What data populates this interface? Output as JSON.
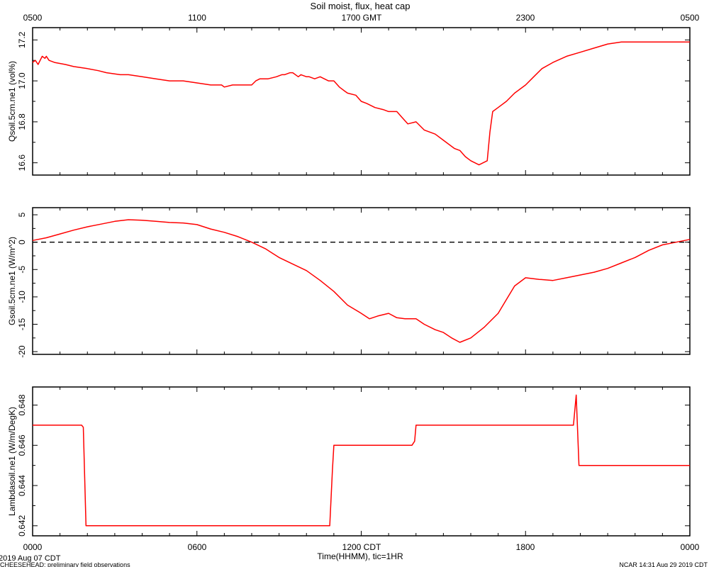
{
  "title": "Soil moist, flux, heat cap",
  "top_axis": {
    "labels": [
      "0500",
      "1100",
      "1700 GMT",
      "2300",
      "0500"
    ]
  },
  "bottom_axis": {
    "labels": [
      "0000",
      "0600",
      "1200 CDT",
      "1800",
      "0000"
    ],
    "xlabel": "Time(HHMM), tic=1HR"
  },
  "footer": {
    "date": "2019 Aug 07 CDT",
    "project": "CHEESEHEAD: preliminary field observations",
    "stamp": "NCAR 14:31 Aug 29 2019 CDT"
  },
  "colors": {
    "series": "#ff0000",
    "axes": "#000000",
    "zero_line": "#000000"
  },
  "chart_data": [
    {
      "type": "line",
      "ylabel": "Qsoil.5cm.ne1 (vol%)",
      "ylim": [
        16.54,
        17.26
      ],
      "yticks": [
        "16.6",
        "16.8",
        "17.0",
        "17.2"
      ],
      "xlim": [
        0,
        24
      ],
      "x": [
        0,
        0.1,
        0.2,
        0.35,
        0.45,
        0.5,
        0.6,
        0.8,
        1.2,
        1.5,
        2.0,
        2.4,
        2.7,
        3.2,
        3.5,
        4.0,
        4.5,
        5.0,
        5.5,
        6.0,
        6.5,
        6.9,
        7.0,
        7.3,
        8.0,
        8.15,
        8.3,
        8.6,
        8.9,
        9.1,
        9.2,
        9.4,
        9.5,
        9.7,
        9.8,
        10.0,
        10.1,
        10.3,
        10.5,
        10.8,
        11.0,
        11.2,
        11.4,
        11.5,
        11.8,
        12.0,
        12.2,
        12.5,
        12.8,
        13.0,
        13.3,
        13.5,
        13.7,
        14.0,
        14.3,
        14.7,
        15.0,
        15.4,
        15.6,
        15.8,
        16.0,
        16.3,
        16.6,
        16.7,
        16.8,
        17.0,
        17.3,
        17.6,
        18.0,
        18.3,
        18.6,
        19.0,
        19.5,
        20.0,
        20.5,
        21.0,
        21.5,
        22.0,
        22.5,
        23.0,
        23.5,
        24.0
      ],
      "values": [
        17.09,
        17.1,
        17.08,
        17.12,
        17.11,
        17.12,
        17.1,
        17.09,
        17.08,
        17.07,
        17.06,
        17.05,
        17.04,
        17.03,
        17.03,
        17.02,
        17.01,
        17.0,
        17.0,
        16.99,
        16.98,
        16.98,
        16.97,
        16.98,
        16.98,
        17.0,
        17.01,
        17.01,
        17.02,
        17.03,
        17.03,
        17.04,
        17.04,
        17.02,
        17.03,
        17.02,
        17.02,
        17.01,
        17.02,
        17.0,
        17.0,
        16.97,
        16.95,
        16.94,
        16.93,
        16.9,
        16.89,
        16.87,
        16.86,
        16.85,
        16.85,
        16.82,
        16.79,
        16.8,
        16.76,
        16.74,
        16.71,
        16.67,
        16.66,
        16.63,
        16.61,
        16.59,
        16.61,
        16.75,
        16.85,
        16.87,
        16.9,
        16.94,
        16.98,
        17.02,
        17.06,
        17.09,
        17.12,
        17.14,
        17.16,
        17.18,
        17.19,
        17.19,
        17.19,
        17.19,
        17.19,
        17.19
      ],
      "grid": false
    },
    {
      "type": "line",
      "ylabel": "Gsoil.5cm.ne1 (W/m^2)",
      "ylim": [
        -20.5,
        6.3
      ],
      "yticks": [
        "5",
        "0",
        "-5",
        "-10",
        "-15",
        "-20"
      ],
      "xlim": [
        0,
        24
      ],
      "x": [
        0,
        0.5,
        1.0,
        1.5,
        2.0,
        2.5,
        3.0,
        3.5,
        4.0,
        4.5,
        5.0,
        5.5,
        6.0,
        6.5,
        7.0,
        7.5,
        8.0,
        8.5,
        9.0,
        9.5,
        10.0,
        10.5,
        11.0,
        11.5,
        12.0,
        12.3,
        12.6,
        13.0,
        13.3,
        13.6,
        14.0,
        14.3,
        14.7,
        15.0,
        15.3,
        15.6,
        16.0,
        16.5,
        17.0,
        17.3,
        17.6,
        18.0,
        18.5,
        19.0,
        19.5,
        20.0,
        20.5,
        21.0,
        21.5,
        22.0,
        22.5,
        23.0,
        23.5,
        24.0
      ],
      "values": [
        0.3,
        0.8,
        1.5,
        2.2,
        2.8,
        3.3,
        3.8,
        4.1,
        4.0,
        3.8,
        3.6,
        3.5,
        3.2,
        2.4,
        1.8,
        1.0,
        0.0,
        -1.2,
        -2.8,
        -4.0,
        -5.2,
        -7.0,
        -9.0,
        -11.5,
        -13.0,
        -14.0,
        -13.5,
        -13.0,
        -13.8,
        -14.0,
        -14.0,
        -15.0,
        -16.0,
        -16.5,
        -17.5,
        -18.3,
        -17.5,
        -15.5,
        -13.0,
        -10.5,
        -8.0,
        -6.5,
        -6.8,
        -7.0,
        -6.5,
        -6.0,
        -5.5,
        -4.8,
        -3.8,
        -2.8,
        -1.5,
        -0.5,
        0.0,
        0.5
      ],
      "reference_line": 0,
      "grid": false
    },
    {
      "type": "line",
      "ylabel": "Lambdasoil.ne1 (W/m/DegK)",
      "ylim": [
        0.6415,
        0.6489
      ],
      "yticks": [
        "0.642",
        "0.644",
        "0.646",
        "0.648"
      ],
      "xlim": [
        0,
        24
      ],
      "x": [
        0,
        1.79,
        1.85,
        1.95,
        10.85,
        10.95,
        11.0,
        13.85,
        13.95,
        14.0,
        19.75,
        19.85,
        19.95,
        24.0
      ],
      "values": [
        0.647,
        0.647,
        0.6469,
        0.642,
        0.642,
        0.6448,
        0.646,
        0.646,
        0.6462,
        0.647,
        0.647,
        0.6485,
        0.645,
        0.645
      ],
      "grid": false
    }
  ]
}
